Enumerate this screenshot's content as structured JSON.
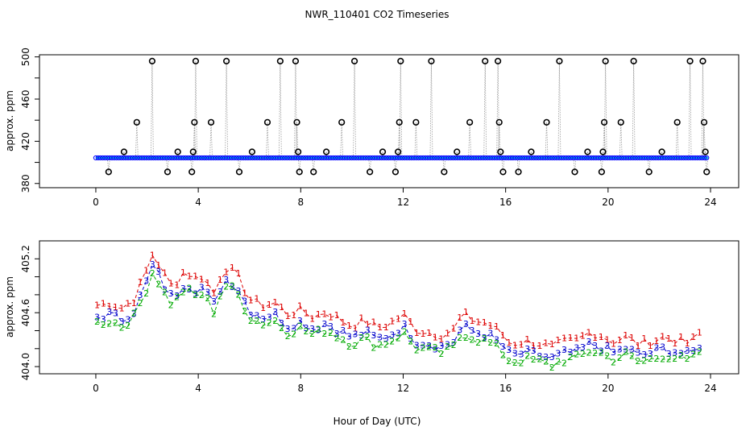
{
  "figure": {
    "title": "NWR_110401  CO2 Timeseries",
    "xlabel": "Hour of Day (UTC)"
  },
  "chart_data": [
    {
      "type": "scatter",
      "title": "NWR_110401  CO2 Timeseries",
      "ylabel": "approx. ppm",
      "xlim": [
        -2.2,
        25.1
      ],
      "ylim": [
        376,
        502
      ],
      "xticks": [
        0,
        4,
        8,
        12,
        16,
        20,
        24
      ],
      "yticks": [
        380,
        420,
        460,
        500
      ],
      "baseline_ppm": 404.3,
      "series_colors": {
        "raw": "#000000",
        "flagged": "#0000ff",
        "accepted": "#00cccc"
      },
      "spikes": [
        {
          "x": 0.5,
          "y": 391
        },
        {
          "x": 1.1,
          "y": 410
        },
        {
          "x": 1.6,
          "y": 438
        },
        {
          "x": 2.2,
          "y": 496
        },
        {
          "x": 2.8,
          "y": 391
        },
        {
          "x": 3.2,
          "y": 410
        },
        {
          "x": 3.75,
          "y": 391
        },
        {
          "x": 3.8,
          "y": 410
        },
        {
          "x": 3.85,
          "y": 438
        },
        {
          "x": 3.9,
          "y": 496
        },
        {
          "x": 4.5,
          "y": 438
        },
        {
          "x": 5.1,
          "y": 496
        },
        {
          "x": 5.6,
          "y": 391
        },
        {
          "x": 6.1,
          "y": 410
        },
        {
          "x": 6.7,
          "y": 438
        },
        {
          "x": 7.2,
          "y": 496
        },
        {
          "x": 7.8,
          "y": 496
        },
        {
          "x": 7.85,
          "y": 438
        },
        {
          "x": 7.9,
          "y": 410
        },
        {
          "x": 7.95,
          "y": 391
        },
        {
          "x": 8.5,
          "y": 391
        },
        {
          "x": 9.0,
          "y": 410
        },
        {
          "x": 9.6,
          "y": 438
        },
        {
          "x": 10.1,
          "y": 496
        },
        {
          "x": 10.7,
          "y": 391
        },
        {
          "x": 11.2,
          "y": 410
        },
        {
          "x": 11.7,
          "y": 391
        },
        {
          "x": 11.8,
          "y": 410
        },
        {
          "x": 11.85,
          "y": 438
        },
        {
          "x": 11.9,
          "y": 496
        },
        {
          "x": 12.5,
          "y": 438
        },
        {
          "x": 13.1,
          "y": 496
        },
        {
          "x": 13.6,
          "y": 391
        },
        {
          "x": 14.1,
          "y": 410
        },
        {
          "x": 14.6,
          "y": 438
        },
        {
          "x": 15.2,
          "y": 496
        },
        {
          "x": 15.7,
          "y": 496
        },
        {
          "x": 15.75,
          "y": 438
        },
        {
          "x": 15.8,
          "y": 410
        },
        {
          "x": 15.9,
          "y": 391
        },
        {
          "x": 16.5,
          "y": 391
        },
        {
          "x": 17.0,
          "y": 410
        },
        {
          "x": 17.6,
          "y": 438
        },
        {
          "x": 18.1,
          "y": 496
        },
        {
          "x": 18.7,
          "y": 391
        },
        {
          "x": 19.2,
          "y": 410
        },
        {
          "x": 19.75,
          "y": 391
        },
        {
          "x": 19.8,
          "y": 410
        },
        {
          "x": 19.85,
          "y": 438
        },
        {
          "x": 19.9,
          "y": 496
        },
        {
          "x": 20.5,
          "y": 438
        },
        {
          "x": 21.0,
          "y": 496
        },
        {
          "x": 21.6,
          "y": 391
        },
        {
          "x": 22.1,
          "y": 410
        },
        {
          "x": 22.7,
          "y": 438
        },
        {
          "x": 23.2,
          "y": 496
        },
        {
          "x": 23.7,
          "y": 496
        },
        {
          "x": 23.75,
          "y": 438
        },
        {
          "x": 23.8,
          "y": 410
        },
        {
          "x": 23.85,
          "y": 391
        }
      ]
    },
    {
      "type": "line",
      "ylabel": "approx. ppm",
      "xlim": [
        -2.2,
        25.1
      ],
      "ylim": [
        403.92,
        405.4
      ],
      "xticks": [
        0,
        4,
        8,
        12,
        16,
        20,
        24
      ],
      "yticks": [
        404.0,
        404.6,
        405.2
      ],
      "ytick_labels": [
        "404.0",
        "404.6",
        "405.2"
      ],
      "series": [
        {
          "name": "1",
          "label": "1",
          "color": "#dd0000",
          "offset": 0.13
        },
        {
          "name": "3",
          "label": "3",
          "color": "#0000cc",
          "offset": 0.0
        },
        {
          "name": "2",
          "label": "2",
          "color": "#00aa00",
          "offset": -0.07
        }
      ],
      "base_curve": [
        {
          "x": 0.0,
          "y": 404.55
        },
        {
          "x": 0.6,
          "y": 404.58
        },
        {
          "x": 1.0,
          "y": 404.52
        },
        {
          "x": 1.5,
          "y": 404.62
        },
        {
          "x": 2.0,
          "y": 404.95
        },
        {
          "x": 2.25,
          "y": 405.15
        },
        {
          "x": 2.6,
          "y": 404.92
        },
        {
          "x": 3.0,
          "y": 404.75
        },
        {
          "x": 3.5,
          "y": 404.95
        },
        {
          "x": 3.8,
          "y": 404.85
        },
        {
          "x": 4.2,
          "y": 404.88
        },
        {
          "x": 4.6,
          "y": 404.68
        },
        {
          "x": 5.0,
          "y": 404.98
        },
        {
          "x": 5.5,
          "y": 404.9
        },
        {
          "x": 6.0,
          "y": 404.62
        },
        {
          "x": 6.5,
          "y": 404.55
        },
        {
          "x": 7.0,
          "y": 404.58
        },
        {
          "x": 7.5,
          "y": 404.45
        },
        {
          "x": 8.0,
          "y": 404.5
        },
        {
          "x": 8.5,
          "y": 404.42
        },
        {
          "x": 9.0,
          "y": 404.48
        },
        {
          "x": 9.5,
          "y": 404.4
        },
        {
          "x": 10.0,
          "y": 404.32
        },
        {
          "x": 10.5,
          "y": 404.38
        },
        {
          "x": 11.0,
          "y": 404.3
        },
        {
          "x": 11.5,
          "y": 404.35
        },
        {
          "x": 12.0,
          "y": 404.45
        },
        {
          "x": 12.5,
          "y": 404.28
        },
        {
          "x": 13.0,
          "y": 404.25
        },
        {
          "x": 13.5,
          "y": 404.22
        },
        {
          "x": 14.0,
          "y": 404.28
        },
        {
          "x": 14.3,
          "y": 404.45
        },
        {
          "x": 14.8,
          "y": 404.38
        },
        {
          "x": 15.3,
          "y": 404.35
        },
        {
          "x": 15.8,
          "y": 404.25
        },
        {
          "x": 16.2,
          "y": 404.12
        },
        {
          "x": 16.8,
          "y": 404.15
        },
        {
          "x": 17.4,
          "y": 404.12
        },
        {
          "x": 17.8,
          "y": 404.08
        },
        {
          "x": 18.2,
          "y": 404.14
        },
        {
          "x": 18.8,
          "y": 404.16
        },
        {
          "x": 19.3,
          "y": 404.25
        },
        {
          "x": 19.7,
          "y": 404.22
        },
        {
          "x": 20.2,
          "y": 404.15
        },
        {
          "x": 20.7,
          "y": 404.2
        },
        {
          "x": 21.2,
          "y": 404.12
        },
        {
          "x": 21.7,
          "y": 404.15
        },
        {
          "x": 22.2,
          "y": 404.2
        },
        {
          "x": 22.7,
          "y": 404.16
        },
        {
          "x": 23.2,
          "y": 404.12
        },
        {
          "x": 23.7,
          "y": 404.28
        }
      ]
    }
  ]
}
